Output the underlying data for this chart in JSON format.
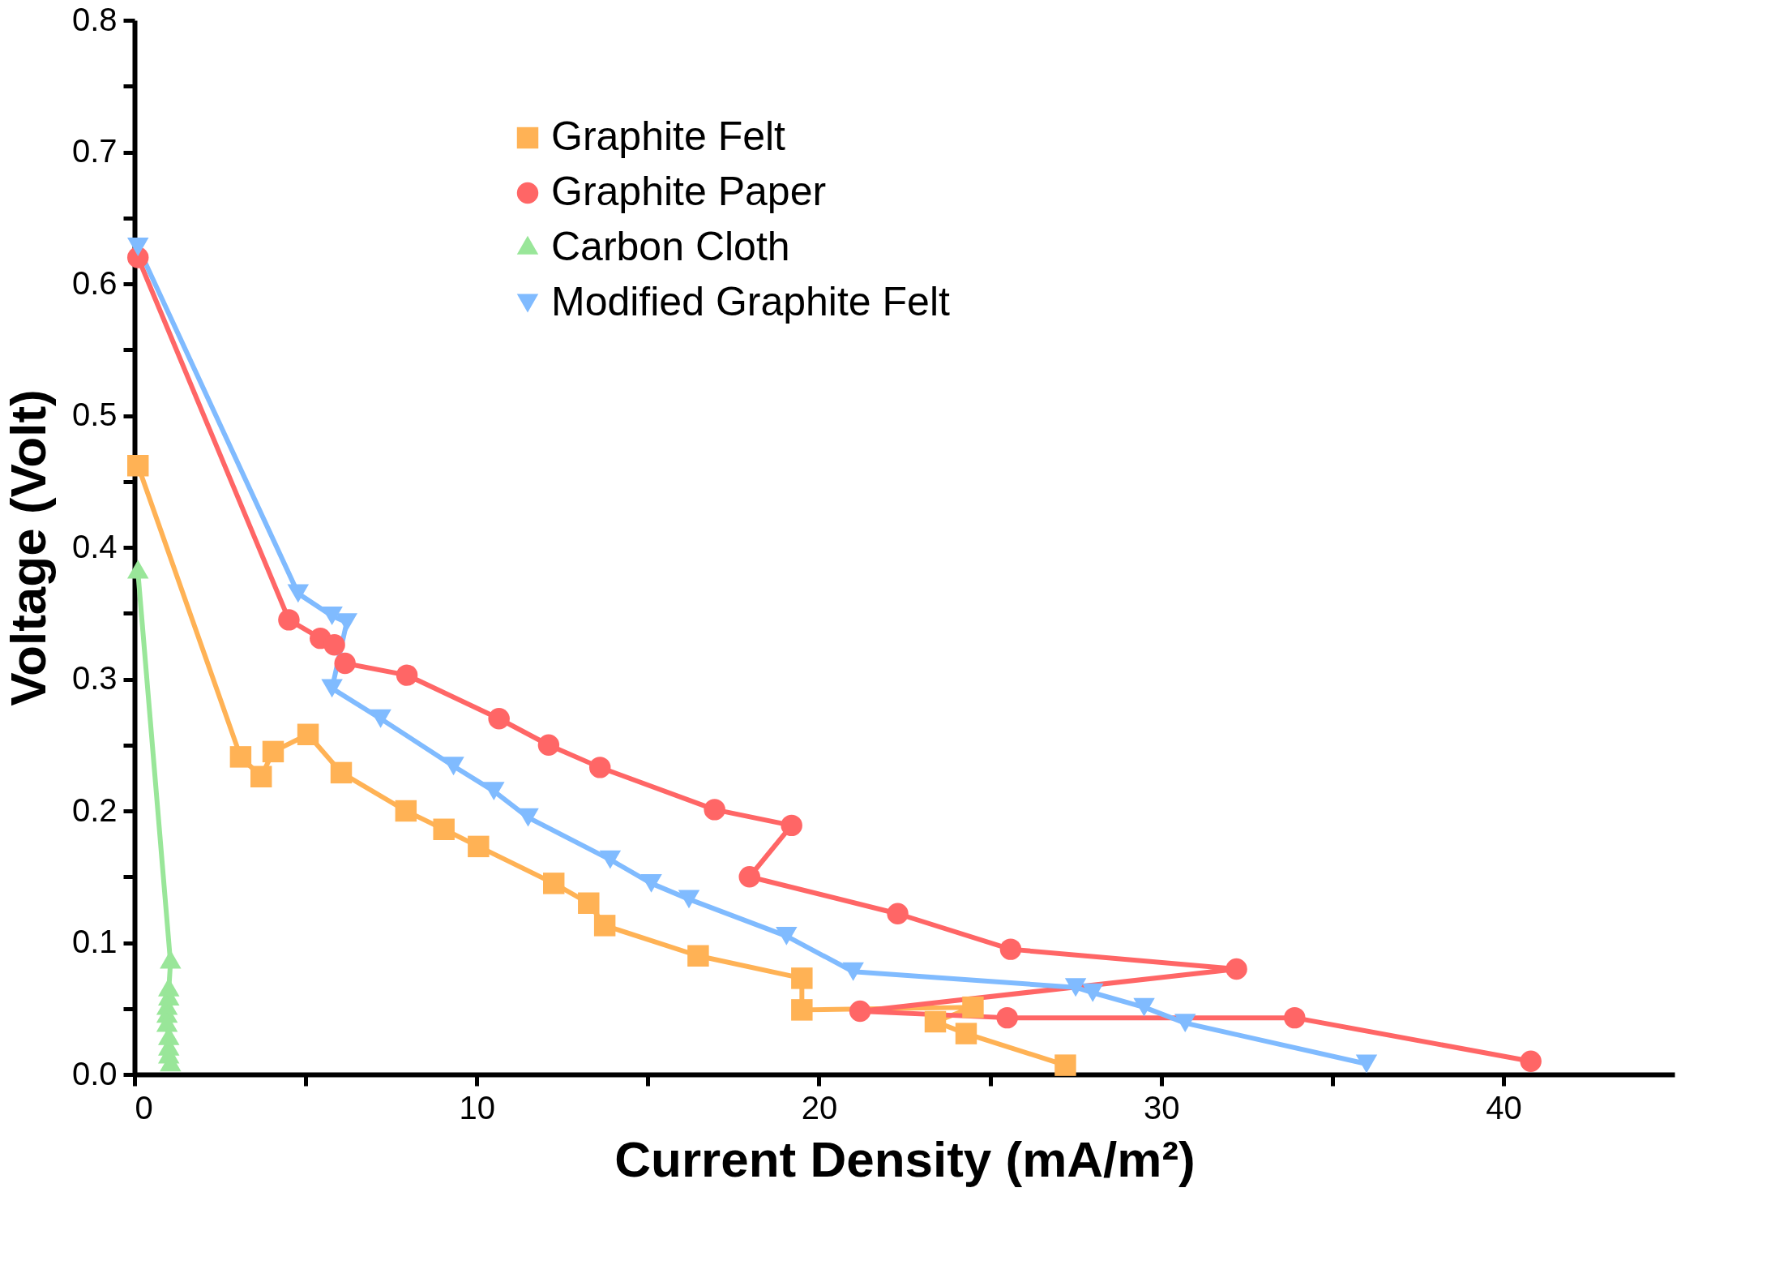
{
  "chart_data": {
    "type": "line",
    "xlabel": "Current Density (mA/m²)",
    "ylabel": "Voltage (Volt)",
    "xlim": [
      0,
      45
    ],
    "xticks": [
      0,
      {
        "value": 5,
        "label": null
      },
      10,
      {
        "value": 15,
        "label": null
      },
      20,
      {
        "value": 25,
        "label": null
      },
      30,
      {
        "value": 35,
        "label": null
      },
      40
    ],
    "ylim": [
      0,
      0.8
    ],
    "yticks": [
      {
        "value": 0,
        "label": "0.0"
      },
      {
        "value": 0.05,
        "label": null
      },
      0.1,
      {
        "value": 0.15,
        "label": null
      },
      0.2,
      {
        "value": 0.25,
        "label": null
      },
      0.3,
      {
        "value": 0.35,
        "label": null
      },
      0.4,
      {
        "value": 0.45,
        "label": null
      },
      0.5,
      {
        "value": 0.55,
        "label": null
      },
      0.6,
      {
        "value": 0.65,
        "label": null
      },
      0.7,
      {
        "value": 0.75,
        "label": null
      },
      0.8
    ],
    "grid": false,
    "legend": "top",
    "line_style": "solid",
    "series": [
      {
        "name": "Graphite Felt",
        "color": "#ffb255",
        "marker": "square",
        "x": [
          0.1,
          3.1,
          3.7,
          4.05,
          5.07,
          6.04,
          7.93,
          9.04,
          10.05,
          12.25,
          13.27,
          13.74,
          16.47,
          19.5,
          19.5,
          24.5,
          23.4,
          24.3,
          27.2
        ],
        "values": [
          0.462,
          0.241,
          0.226,
          0.245,
          0.258,
          0.229,
          0.2,
          0.186,
          0.173,
          0.145,
          0.13,
          0.113,
          0.09,
          0.073,
          0.049,
          0.051,
          0.04,
          0.031,
          0.007
        ]
      },
      {
        "name": "Graphite Paper",
        "color": "#ff6666",
        "marker": "circle",
        "x": [
          0.1,
          4.51,
          5.43,
          5.84,
          6.15,
          7.96,
          10.65,
          12.1,
          13.6,
          16.95,
          19.2,
          17.97,
          22.3,
          25.6,
          32.2,
          21.2,
          25.5,
          33.9,
          40.8
        ],
        "values": [
          0.62,
          0.345,
          0.331,
          0.326,
          0.312,
          0.303,
          0.27,
          0.25,
          0.233,
          0.201,
          0.189,
          0.15,
          0.122,
          0.095,
          0.08,
          0.048,
          0.043,
          0.043,
          0.01
        ]
      },
      {
        "name": "Carbon Cloth",
        "color": "#99e699",
        "marker": "triangle",
        "x": [
          0.1,
          1.05,
          1.0,
          1.0,
          0.95,
          0.95,
          0.95,
          1.0,
          1.0,
          1.0,
          1.05
        ],
        "values": [
          0.381,
          0.085,
          0.064,
          0.057,
          0.05,
          0.044,
          0.037,
          0.027,
          0.019,
          0.013,
          0.007
        ]
      },
      {
        "name": "Modified Graphite Felt",
        "color": "#80bbff",
        "marker": "triangle-down",
        "x": [
          0.1,
          4.78,
          5.77,
          6.2,
          5.77,
          7.19,
          9.32,
          10.5,
          11.5,
          13.9,
          15.1,
          16.2,
          19.05,
          21.0,
          27.5,
          28.0,
          29.5,
          30.7,
          36.0
        ],
        "values": [
          0.628,
          0.365,
          0.348,
          0.343,
          0.293,
          0.27,
          0.234,
          0.215,
          0.195,
          0.163,
          0.145,
          0.133,
          0.105,
          0.078,
          0.066,
          0.062,
          0.051,
          0.039,
          0.008
        ]
      }
    ]
  }
}
